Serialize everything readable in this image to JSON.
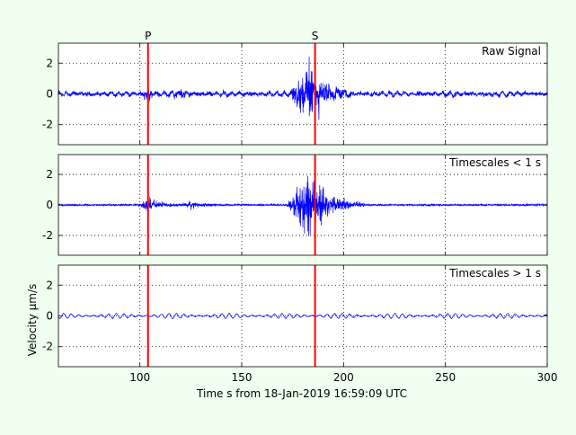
{
  "chart_data": {
    "type": "line",
    "xlabel": "Time s from 18-Jan-2019 16:59:09 UTC",
    "ylabel": "Velocity μm/s",
    "xlim": [
      60,
      300
    ],
    "x_ticks": [
      100,
      150,
      200,
      250,
      300
    ],
    "grid": true,
    "colors": {
      "background": "#f0fff0",
      "trace": "#0000ff",
      "phase_marker": "#ff0000"
    },
    "phase_markers": [
      {
        "label": "P",
        "time": 104
      },
      {
        "label": "S",
        "time": 186
      }
    ],
    "panels": [
      {
        "label": "Raw Signal",
        "ylim": [
          -3.3,
          3.3
        ],
        "y_ticks": [
          -2,
          0,
          2
        ],
        "series": {
          "baseline_amplitude": 0.22,
          "long_period_amplitude": 0.12,
          "events": [
            {
              "start": 100,
              "peak": 104,
              "end": 112,
              "amplitude": 0.45
            },
            {
              "start": 112,
              "peak": 120,
              "end": 130,
              "amplitude": 0.3
            },
            {
              "start": 173,
              "peak": 183,
              "end": 205,
              "amplitude": 2.8
            }
          ]
        }
      },
      {
        "label": "Timescales < 1 s",
        "ylim": [
          -3.3,
          3.3
        ],
        "y_ticks": [
          -2,
          0,
          2
        ],
        "series": {
          "baseline_amplitude": 0.1,
          "long_period_amplitude": 0,
          "events": [
            {
              "start": 99,
              "peak": 104,
              "end": 120,
              "amplitude": 0.7
            },
            {
              "start": 120,
              "peak": 125,
              "end": 140,
              "amplitude": 0.35
            },
            {
              "start": 172,
              "peak": 183,
              "end": 210,
              "amplitude": 3.0
            }
          ]
        }
      },
      {
        "label": "Timescales > 1 s",
        "ylim": [
          -3.3,
          3.3
        ],
        "y_ticks": [
          -2,
          0,
          2
        ],
        "series": {
          "baseline_amplitude": 0.03,
          "long_period_amplitude": 0.16,
          "events": []
        }
      }
    ]
  }
}
